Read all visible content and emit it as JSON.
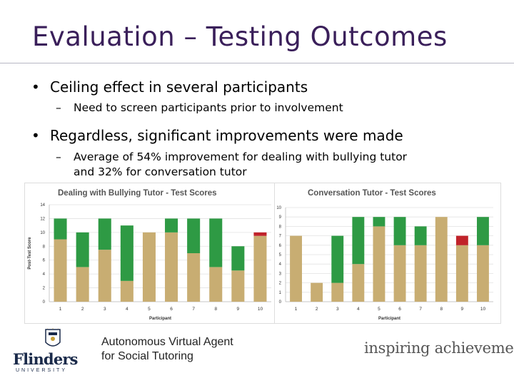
{
  "slide": {
    "title": "Evaluation – Testing Outcomes",
    "bullets": [
      {
        "text": "Ceiling effect in several participants",
        "sub": [
          "Need to screen participants prior to involvement"
        ]
      },
      {
        "text": "Regardless, significant improvements were made",
        "sub": [
          "Average of 54% improvement for dealing with bullying tutor",
          "and 32% for conversation tutor"
        ]
      }
    ],
    "bullet_glyph": "•",
    "dash_glyph": "–"
  },
  "colors": {
    "title": "#3a1f5a",
    "pre_test": "#c8ad72",
    "improvement": "#2e9a44",
    "decline": "#c0222a"
  },
  "chart_data": [
    {
      "type": "bar",
      "title": "Dealing with Bullying Tutor - Test Scores",
      "xlabel": "Participant",
      "ylabel": "Post-Test Score",
      "categories": [
        "1",
        "2",
        "3",
        "4",
        "5",
        "6",
        "7",
        "8",
        "9",
        "10"
      ],
      "ylim": [
        0,
        14
      ],
      "yticks": [
        0,
        2,
        4,
        6,
        8,
        10,
        12,
        14
      ],
      "series": [
        {
          "values": [
            9,
            5,
            7.5,
            3,
            10,
            10,
            7,
            5,
            4.5,
            9.5
          ]
        },
        {
          "values": [
            3,
            5,
            4.5,
            8,
            0,
            2,
            5,
            7,
            3.5,
            0
          ]
        },
        {
          "values": [
            0,
            0,
            0,
            0,
            0,
            0,
            0,
            0,
            0,
            0.5
          ]
        }
      ],
      "grid": true
    },
    {
      "type": "bar",
      "title": "Conversation Tutor - Test Scores",
      "xlabel": "Participant",
      "ylabel": "",
      "categories": [
        "1",
        "2",
        "3",
        "4",
        "5",
        "6",
        "7",
        "8",
        "9",
        "10"
      ],
      "ylim": [
        0,
        10
      ],
      "yticks": [
        0,
        1,
        2,
        3,
        4,
        5,
        6,
        7,
        8,
        9,
        10
      ],
      "series": [
        {
          "values": [
            7,
            2,
            2,
            4,
            8,
            6,
            6,
            9,
            6,
            6
          ]
        },
        {
          "values": [
            0,
            0,
            5,
            5,
            1,
            3,
            2,
            0,
            0,
            3
          ]
        },
        {
          "values": [
            0,
            0,
            0,
            0,
            0,
            0,
            0,
            0,
            1,
            0
          ]
        }
      ],
      "grid": true
    }
  ],
  "footer": {
    "line1": "Autonomous Virtual Agent",
    "line2": "for Social Tutoring",
    "tagline": "inspiring achievement",
    "logo_word": "Flinders",
    "logo_sub": "UNIVERSITY"
  }
}
